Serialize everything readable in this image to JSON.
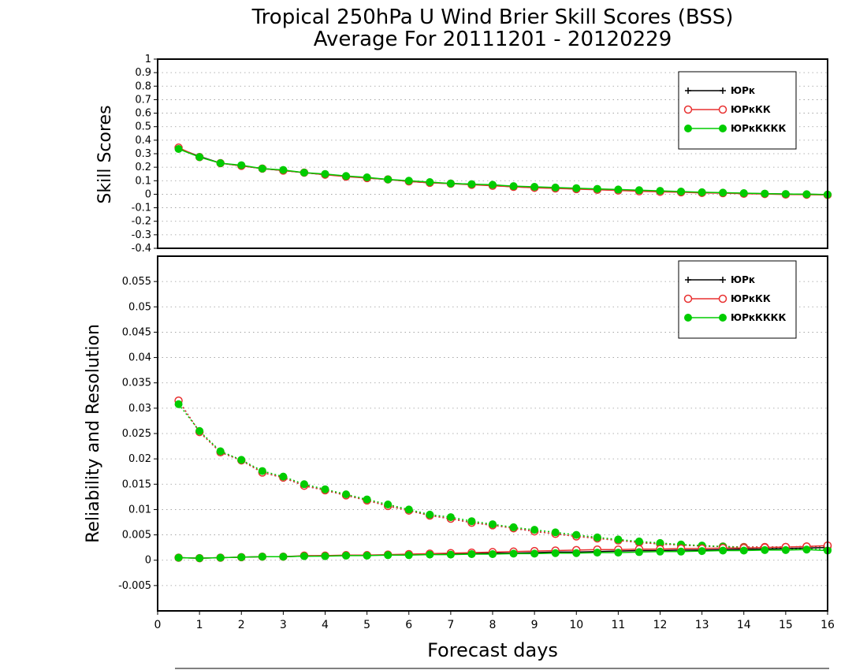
{
  "title": {
    "line1": "Tropical 250hPa U Wind Brier Skill Scores (BSS)",
    "line2": "Average For 20111201 - 20120229"
  },
  "colors": {
    "series1": "#000000",
    "series2": "#e83030",
    "series3": "#00cc00",
    "grid": "#999999"
  },
  "legend_labels": [
    "ЮРк",
    "ЮРкКК",
    "ЮРкКККК"
  ],
  "chart_data": [
    {
      "type": "line",
      "panel": "top",
      "ylabel": "Skill Scores",
      "xlim": [
        0,
        16
      ],
      "ylim": [
        -0.4,
        1.0
      ],
      "yticks": [
        -0.4,
        -0.3,
        -0.2,
        -0.1,
        0,
        0.1,
        0.2,
        0.3,
        0.4,
        0.5,
        0.6,
        0.7,
        0.8,
        0.9,
        1
      ],
      "grid": true,
      "legend_position": "top-right",
      "x": [
        0.5,
        1,
        1.5,
        2,
        2.5,
        3,
        3.5,
        4,
        4.5,
        5,
        5.5,
        6,
        6.5,
        7,
        7.5,
        8,
        8.5,
        9,
        9.5,
        10,
        10.5,
        11,
        11.5,
        12,
        12.5,
        13,
        13.5,
        14,
        14.5,
        15,
        15.5,
        16
      ],
      "series": [
        {
          "name": "ЮРк",
          "marker": "plus",
          "values": [
            0.34,
            0.28,
            0.23,
            0.21,
            0.19,
            0.175,
            0.16,
            0.145,
            0.135,
            0.12,
            0.11,
            0.095,
            0.085,
            0.08,
            0.075,
            0.065,
            0.055,
            0.05,
            0.045,
            0.04,
            0.035,
            0.03,
            0.025,
            0.02,
            0.017,
            0.013,
            0.01,
            0.007,
            0.004,
            0.002,
            0,
            -0.003
          ]
        },
        {
          "name": "ЮРкКК",
          "marker": "open-circle",
          "values": [
            0.345,
            0.275,
            0.23,
            0.21,
            0.19,
            0.175,
            0.16,
            0.145,
            0.13,
            0.12,
            0.11,
            0.095,
            0.085,
            0.078,
            0.07,
            0.063,
            0.055,
            0.048,
            0.043,
            0.038,
            0.033,
            0.028,
            0.022,
            0.018,
            0.015,
            0.01,
            0.008,
            0.004,
            0.002,
            -0.002,
            -0.003,
            -0.005
          ]
        },
        {
          "name": "ЮРкКККК",
          "marker": "filled-circle",
          "values": [
            0.335,
            0.275,
            0.23,
            0.215,
            0.19,
            0.18,
            0.16,
            0.15,
            0.135,
            0.125,
            0.11,
            0.1,
            0.09,
            0.08,
            0.075,
            0.07,
            0.06,
            0.055,
            0.05,
            0.045,
            0.04,
            0.035,
            0.03,
            0.025,
            0.02,
            0.015,
            0.012,
            0.008,
            0.005,
            0.002,
            0,
            -0.002
          ]
        }
      ]
    },
    {
      "type": "line",
      "panel": "bottom",
      "ylabel": "Reliability and Resolution",
      "xlabel": "Forecast days",
      "xlim": [
        0,
        16
      ],
      "xticks": [
        0,
        1,
        2,
        3,
        4,
        5,
        6,
        7,
        8,
        9,
        10,
        11,
        12,
        13,
        14,
        15,
        16
      ],
      "ylim": [
        -0.01,
        0.06
      ],
      "yticks": [
        -0.005,
        0,
        0.005,
        0.01,
        0.015,
        0.02,
        0.025,
        0.03,
        0.035,
        0.04,
        0.045,
        0.05,
        0.055
      ],
      "grid": true,
      "legend_position": "top-right",
      "x": [
        0.5,
        1,
        1.5,
        2,
        2.5,
        3,
        3.5,
        4,
        4.5,
        5,
        5.5,
        6,
        6.5,
        7,
        7.5,
        8,
        8.5,
        9,
        9.5,
        10,
        10.5,
        11,
        11.5,
        12,
        12.5,
        13,
        13.5,
        14,
        14.5,
        15,
        15.5,
        16
      ],
      "series": [
        {
          "name": "ЮРк",
          "role": "resolution",
          "marker": "plus",
          "values": [
            0.0315,
            0.0253,
            0.0213,
            0.0197,
            0.0173,
            0.0163,
            0.0147,
            0.0138,
            0.0128,
            0.0118,
            0.0107,
            0.0098,
            0.0088,
            0.0082,
            0.0074,
            0.0069,
            0.0063,
            0.0057,
            0.0052,
            0.0047,
            0.0043,
            0.0039,
            0.0035,
            0.0032,
            0.003,
            0.0028,
            0.0027,
            0.0026,
            0.0026,
            0.0026,
            0.0027,
            0.0028
          ]
        },
        {
          "name": "ЮРкКК",
          "role": "resolution",
          "marker": "open-circle",
          "values": [
            0.0315,
            0.0253,
            0.0213,
            0.0197,
            0.0173,
            0.0163,
            0.0147,
            0.0138,
            0.0128,
            0.0118,
            0.0107,
            0.0098,
            0.0088,
            0.0082,
            0.0074,
            0.0069,
            0.0063,
            0.0057,
            0.0052,
            0.0047,
            0.0043,
            0.0039,
            0.0035,
            0.0032,
            0.003,
            0.0028,
            0.0027,
            0.0026,
            0.0026,
            0.0026,
            0.0027,
            0.0028
          ]
        },
        {
          "name": "ЮРкКККК",
          "role": "resolution",
          "marker": "filled-circle",
          "values": [
            0.0308,
            0.0255,
            0.0215,
            0.0198,
            0.0176,
            0.0165,
            0.015,
            0.014,
            0.013,
            0.012,
            0.011,
            0.01,
            0.009,
            0.0085,
            0.0077,
            0.0071,
            0.0065,
            0.006,
            0.0055,
            0.005,
            0.0045,
            0.0041,
            0.0037,
            0.0034,
            0.0031,
            0.0029,
            0.0027,
            0.0025,
            0.0024,
            0.0023,
            0.0022,
            0.0021
          ]
        },
        {
          "name": "ЮРк",
          "role": "reliability",
          "marker": "plus",
          "values": [
            0.0005,
            0.0004,
            0.0005,
            0.0006,
            0.0007,
            0.0007,
            0.0008,
            0.0009,
            0.0009,
            0.001,
            0.001,
            0.0011,
            0.0012,
            0.0013,
            0.0013,
            0.0014,
            0.0014,
            0.0015,
            0.0016,
            0.0016,
            0.0017,
            0.0018,
            0.0019,
            0.0019,
            0.002,
            0.002,
            0.0021,
            0.0022,
            0.0022,
            0.0023,
            0.0024,
            0.0025
          ]
        },
        {
          "name": "ЮРкКК",
          "role": "reliability",
          "marker": "open-circle",
          "values": [
            0.0005,
            0.0004,
            0.0005,
            0.0006,
            0.0007,
            0.0007,
            0.0009,
            0.0009,
            0.001,
            0.001,
            0.0011,
            0.0012,
            0.0013,
            0.0014,
            0.0015,
            0.0016,
            0.0017,
            0.0018,
            0.0019,
            0.002,
            0.0021,
            0.0021,
            0.0022,
            0.0022,
            0.0023,
            0.0023,
            0.0024,
            0.0024,
            0.0025,
            0.0026,
            0.0027,
            0.0029
          ]
        },
        {
          "name": "ЮРкКККК",
          "role": "reliability",
          "marker": "filled-circle",
          "values": [
            0.0005,
            0.0004,
            0.0005,
            0.0006,
            0.0007,
            0.0007,
            0.0008,
            0.0008,
            0.0009,
            0.0009,
            0.001,
            0.001,
            0.0011,
            0.0011,
            0.0012,
            0.0012,
            0.0013,
            0.0013,
            0.0014,
            0.0014,
            0.0015,
            0.0015,
            0.0016,
            0.0017,
            0.0017,
            0.0018,
            0.0019,
            0.0019,
            0.002,
            0.002,
            0.0021,
            0.0019
          ]
        }
      ]
    }
  ]
}
